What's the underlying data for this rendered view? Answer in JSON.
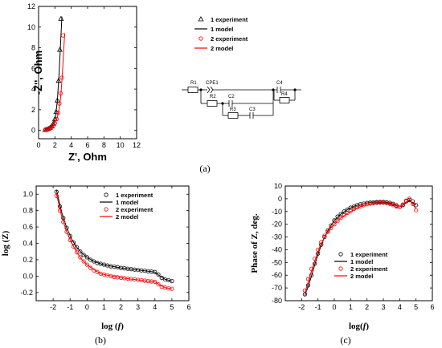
{
  "captions": {
    "a": "(a)",
    "b": "(b)",
    "c": "(c)"
  },
  "circuit": {
    "labels": [
      "R1",
      "CPE1",
      "R2",
      "C2",
      "R3",
      "C3",
      "C4",
      "R4"
    ]
  },
  "chart_data": [
    {
      "id": "a",
      "type": "scatter",
      "xlabel": "Z', Ohm",
      "ylabel": "-Z'', Ohm",
      "xlim": [
        0,
        12
      ],
      "ylim": [
        -0.8,
        12
      ],
      "xticks": [
        "0",
        "2",
        "4",
        "6",
        "8",
        "10",
        "12"
      ],
      "yticks": [
        "0",
        "2",
        "4",
        "6",
        "8",
        "10",
        "12"
      ],
      "legend_position": "top-right",
      "colors": {
        "black": "#000000",
        "red": "#ff0000"
      },
      "series": [
        {
          "name": "1 experiment",
          "kind": "markers",
          "marker": "triangle",
          "color": "#000000",
          "x": [
            0.8,
            1.0,
            1.2,
            1.4,
            1.6,
            1.8,
            2.0,
            2.15,
            2.3,
            2.45,
            2.6,
            2.75
          ],
          "y": [
            0.05,
            0.1,
            0.15,
            0.25,
            0.4,
            0.65,
            1.1,
            1.8,
            2.9,
            4.8,
            7.8,
            10.8
          ]
        },
        {
          "name": "1 model",
          "kind": "line",
          "color": "#000000",
          "x": [
            0.75,
            1.0,
            1.3,
            1.6,
            1.9,
            2.1,
            2.3,
            2.5,
            2.7,
            2.85
          ],
          "y": [
            0.02,
            0.1,
            0.22,
            0.4,
            0.8,
            1.5,
            2.9,
            5.3,
            8.6,
            11.0
          ]
        },
        {
          "name": "2 experiment",
          "kind": "markers",
          "marker": "circle",
          "color": "#ff0000",
          "x": [
            0.8,
            1.0,
            1.2,
            1.4,
            1.6,
            1.8,
            2.0,
            2.2,
            2.4,
            2.55,
            2.7,
            2.85,
            3.0
          ],
          "y": [
            0.05,
            0.08,
            0.12,
            0.2,
            0.3,
            0.45,
            0.7,
            1.1,
            1.7,
            2.6,
            3.6,
            5.1,
            9.2
          ]
        },
        {
          "name": "2 model",
          "kind": "line",
          "color": "#ff0000",
          "x": [
            0.75,
            1.0,
            1.4,
            1.8,
            2.2,
            2.5,
            2.7,
            2.9,
            3.05,
            3.2
          ],
          "y": [
            0.02,
            0.07,
            0.18,
            0.4,
            1.0,
            2.0,
            3.2,
            5.3,
            7.4,
            9.4
          ]
        }
      ]
    },
    {
      "id": "b",
      "type": "scatter",
      "xlabel": "log (f)",
      "ylabel": "log (Z)",
      "xlim": [
        -3,
        6
      ],
      "ylim": [
        -0.3,
        1.1
      ],
      "xticks": [
        "-2",
        "-1",
        "0",
        "1",
        "2",
        "3",
        "4",
        "5",
        "6"
      ],
      "yticks": [
        "-0.2",
        "0.0",
        "0.2",
        "0.4",
        "0.6",
        "0.8",
        "1.0"
      ],
      "legend_position": "top-right",
      "series": [
        {
          "name": "1 experiment",
          "kind": "markers",
          "marker": "circle",
          "color": "#000000",
          "x": [
            -1.8,
            -1.6,
            -1.4,
            -1.2,
            -1.0,
            -0.8,
            -0.6,
            -0.4,
            -0.2,
            0.0,
            0.2,
            0.4,
            0.6,
            0.8,
            1.0,
            1.2,
            1.4,
            1.6,
            1.8,
            2.0,
            2.2,
            2.4,
            2.6,
            2.8,
            3.0,
            3.2,
            3.4,
            3.6,
            3.8,
            4.0,
            4.2,
            4.4,
            4.6,
            4.8,
            5.0
          ],
          "y": [
            1.03,
            0.85,
            0.71,
            0.59,
            0.49,
            0.41,
            0.35,
            0.3,
            0.26,
            0.23,
            0.2,
            0.18,
            0.16,
            0.15,
            0.14,
            0.13,
            0.12,
            0.115,
            0.11,
            0.1,
            0.095,
            0.09,
            0.085,
            0.08,
            0.075,
            0.07,
            0.065,
            0.06,
            0.055,
            0.05,
            0.02,
            -0.02,
            -0.04,
            -0.05,
            -0.06
          ]
        },
        {
          "name": "1 model",
          "kind": "line",
          "color": "#000000",
          "x": [
            -1.8,
            -1.5,
            -1.2,
            -0.9,
            -0.6,
            -0.3,
            0.0,
            0.4,
            0.8,
            1.2,
            1.6,
            2.0,
            2.5,
            3.0,
            3.5,
            4.0,
            4.3,
            4.6,
            5.0
          ],
          "y": [
            1.05,
            0.78,
            0.59,
            0.45,
            0.35,
            0.28,
            0.23,
            0.18,
            0.15,
            0.13,
            0.115,
            0.1,
            0.088,
            0.075,
            0.062,
            0.05,
            0.0,
            -0.04,
            -0.06
          ]
        },
        {
          "name": "2 experiment",
          "kind": "markers",
          "marker": "circle",
          "color": "#ff0000",
          "x": [
            -1.8,
            -1.6,
            -1.4,
            -1.2,
            -1.0,
            -0.8,
            -0.6,
            -0.4,
            -0.2,
            0.0,
            0.2,
            0.4,
            0.6,
            0.8,
            1.0,
            1.2,
            1.4,
            1.6,
            1.8,
            2.0,
            2.2,
            2.4,
            2.6,
            2.8,
            3.0,
            3.2,
            3.4,
            3.6,
            3.8,
            4.0,
            4.2,
            4.4,
            4.6,
            4.8,
            5.0
          ],
          "y": [
            0.98,
            0.8,
            0.66,
            0.54,
            0.44,
            0.36,
            0.29,
            0.23,
            0.18,
            0.14,
            0.1,
            0.07,
            0.05,
            0.03,
            0.02,
            0.01,
            0.0,
            -0.01,
            -0.015,
            -0.02,
            -0.025,
            -0.03,
            -0.035,
            -0.04,
            -0.045,
            -0.05,
            -0.055,
            -0.06,
            -0.065,
            -0.07,
            -0.1,
            -0.13,
            -0.14,
            -0.15,
            -0.155
          ]
        },
        {
          "name": "2 model",
          "kind": "line",
          "color": "#ff0000",
          "x": [
            -1.8,
            -1.5,
            -1.2,
            -0.9,
            -0.6,
            -0.3,
            0.0,
            0.4,
            0.8,
            1.2,
            1.6,
            2.0,
            2.5,
            3.0,
            3.5,
            4.0,
            4.3,
            4.6,
            5.0
          ],
          "y": [
            1.0,
            0.73,
            0.54,
            0.4,
            0.29,
            0.2,
            0.14,
            0.08,
            0.03,
            0.01,
            -0.005,
            -0.02,
            -0.035,
            -0.045,
            -0.06,
            -0.07,
            -0.11,
            -0.14,
            -0.155
          ]
        }
      ]
    },
    {
      "id": "c",
      "type": "scatter",
      "xlabel": "log(f)",
      "ylabel": "Phase of Z, deg.",
      "xlim": [
        -3,
        6
      ],
      "ylim": [
        -80,
        10
      ],
      "xticks": [
        "-2",
        "-1",
        "0",
        "1",
        "2",
        "3",
        "4",
        "5",
        "6"
      ],
      "yticks": [
        "-80",
        "-70",
        "-60",
        "-50",
        "-40",
        "-30",
        "-20",
        "-10",
        "0",
        "10"
      ],
      "legend_position": "bottom-right",
      "series": [
        {
          "name": "1 experiment",
          "kind": "markers",
          "marker": "circle",
          "color": "#000000",
          "x": [
            -1.8,
            -1.6,
            -1.4,
            -1.2,
            -1.0,
            -0.8,
            -0.6,
            -0.4,
            -0.2,
            0.0,
            0.2,
            0.4,
            0.6,
            0.8,
            1.0,
            1.2,
            1.4,
            1.6,
            1.8,
            2.0,
            2.2,
            2.4,
            2.6,
            2.8,
            3.0,
            3.2,
            3.4,
            3.6,
            3.8,
            4.0,
            4.2,
            4.4,
            4.6,
            4.8,
            5.0
          ],
          "y": [
            -75,
            -68,
            -60,
            -51,
            -43,
            -36,
            -30,
            -25,
            -21,
            -17,
            -14,
            -12,
            -10,
            -8.5,
            -7,
            -6,
            -5,
            -4.3,
            -3.8,
            -3.3,
            -3,
            -2.8,
            -2.6,
            -2.5,
            -2.5,
            -2.7,
            -3.2,
            -4,
            -5.2,
            -6.5,
            -5,
            -2,
            -1,
            -2,
            -5
          ]
        },
        {
          "name": "1 model",
          "kind": "line",
          "color": "#000000",
          "x": [
            -1.8,
            -1.5,
            -1.2,
            -0.9,
            -0.6,
            -0.3,
            0.0,
            0.4,
            0.8,
            1.2,
            1.6,
            2.0,
            2.5,
            3.0,
            3.5,
            4.0,
            4.3,
            4.6,
            5.0
          ],
          "y": [
            -76,
            -65,
            -52,
            -40,
            -30,
            -23,
            -17,
            -12,
            -8.5,
            -6,
            -4.3,
            -3.3,
            -2.6,
            -2.5,
            -3.6,
            -6.5,
            -4,
            -1.5,
            -5
          ]
        },
        {
          "name": "2 experiment",
          "kind": "markers",
          "marker": "circle",
          "color": "#ff0000",
          "x": [
            -1.8,
            -1.6,
            -1.4,
            -1.2,
            -1.0,
            -0.8,
            -0.6,
            -0.4,
            -0.2,
            0.0,
            0.2,
            0.4,
            0.6,
            0.8,
            1.0,
            1.2,
            1.4,
            1.6,
            1.8,
            2.0,
            2.2,
            2.4,
            2.6,
            2.8,
            3.0,
            3.2,
            3.4,
            3.6,
            3.8,
            4.0,
            4.2,
            4.4,
            4.6,
            4.8,
            5.0
          ],
          "y": [
            -72,
            -63,
            -55,
            -47,
            -40,
            -34,
            -29,
            -26,
            -23,
            -20,
            -17.5,
            -15,
            -13,
            -11,
            -9.5,
            -8,
            -6.8,
            -5.8,
            -5,
            -4.3,
            -3.8,
            -3.4,
            -3.1,
            -3,
            -3,
            -3.3,
            -4,
            -5,
            -6,
            -6.5,
            -4.5,
            -1.5,
            0,
            -4,
            -9
          ]
        },
        {
          "name": "2 model",
          "kind": "line",
          "color": "#ff0000",
          "x": [
            -1.8,
            -1.5,
            -1.2,
            -0.9,
            -0.6,
            -0.3,
            0.0,
            0.4,
            0.8,
            1.2,
            1.6,
            2.0,
            2.5,
            3.0,
            3.5,
            4.0,
            4.3,
            4.6,
            5.0
          ],
          "y": [
            -74,
            -61,
            -49,
            -38,
            -30,
            -24,
            -20,
            -15,
            -11.5,
            -8.5,
            -6.2,
            -4.6,
            -3.4,
            -3,
            -4.2,
            -6.5,
            -3.5,
            -0.5,
            -8
          ]
        }
      ]
    }
  ]
}
